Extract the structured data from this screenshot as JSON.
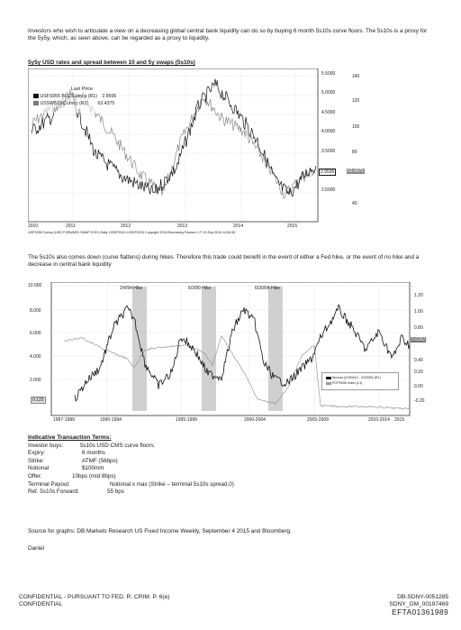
{
  "intro": "Investors who wish to articulate a view on a decreasing global central bank liquidity can do so by buying 6 month 5s10s curve floors. The 5s10s is a proxy for the 5y5y, which, as seen above, can be regarded as a proxy to liquidity.",
  "chart1": {
    "title": "5y5y USD rates and spread between 10 and 5y swaps (5s10s)",
    "legend_header": "Last Price",
    "legend": [
      {
        "name": "USFS055 BLC Curncy (R1)",
        "value": "2.9506",
        "color": "#111111"
      },
      {
        "name": "USSW510 Curncy (R2)",
        "value": "63.4375",
        "color": "#7a7a7a"
      }
    ],
    "x_ticks": [
      "2010",
      "2011",
      "2012",
      "2013",
      "2014",
      "2015"
    ],
    "r1_ticks": [
      "5.5000",
      "5.0000",
      "4.5000",
      "4.0000",
      "3.5000",
      "2.5000"
    ],
    "r1_current": "2.9506",
    "r2_ticks": [
      "140",
      "120",
      "100",
      "80",
      "40"
    ],
    "r2_current": "63.4375",
    "source": "USFS055 Curncy (USD FORWARD SWAP 5Y5Y) Daily 13SEP2010-10SEP2015 Copyright 2015 Bloomberg Finance L.P. 10-Sep-2015 14:54:45"
  },
  "middle": "The 5s10s also comes down (curve flattens) during hikes. Therefore this trade could benefit in the event of either a Fed hike, or the event of no hike and a decrease in central bank liquidity",
  "chart2": {
    "hikes": [
      "2/4/94 Hike",
      "6/3/99 Hike",
      "6/30/04 Hike"
    ],
    "left_ticks": [
      "10.000",
      "8.000",
      "6.000",
      "4.000",
      "2.000"
    ],
    "left_current": "0.125",
    "right_ticks": [
      "1.20",
      "1.00",
      "0.80",
      "0.40",
      "0.20",
      "0.00",
      "-0.20"
    ],
    "right_current": "0.6262",
    "x_ticks": [
      "1987-1989",
      "1990-1994",
      "1995-1999",
      "2000-2004",
      "2005-2009",
      "2010-2014",
      "2015"
    ],
    "legend": [
      "Spread (USSW10 - USSW5) (R1)",
      "FDTRMID Index (L1)"
    ]
  },
  "terms": {
    "heading": "Indicative Transaction Terms:",
    "rows": [
      {
        "label": "Investor buys:",
        "value": "5s10s USD CMS curve floors"
      },
      {
        "label": "Expiry:",
        "value": "6 months"
      },
      {
        "label": "Strike:",
        "value": "ATMF (56bps)"
      },
      {
        "label": "Notional",
        "value": "$100mm"
      },
      {
        "label": "Offer:",
        "value": "10bps (mid 8bps)"
      },
      {
        "label": "Terminal Payout:",
        "value": "Notional x max (Strike – terminal 5s10s spread,0)"
      },
      {
        "label": "Ref. 5s10s Forward:",
        "value": "55 bps"
      }
    ]
  },
  "source_line": "Source for graphs: DB Markets Research US Fixed Income Weekly, September 4 2015 and Bloomberg.",
  "signature": "Daniel",
  "footer": {
    "left1": "CONFIDENTIAL - PURSUANT TO FED. R. CRIM. P. 6(e)",
    "left2": "CONFIDENTIAL",
    "right1": "DB-SDNY-0051285",
    "right2": "SDNY_GM_00197469",
    "right3": "EFTA01361989"
  }
}
